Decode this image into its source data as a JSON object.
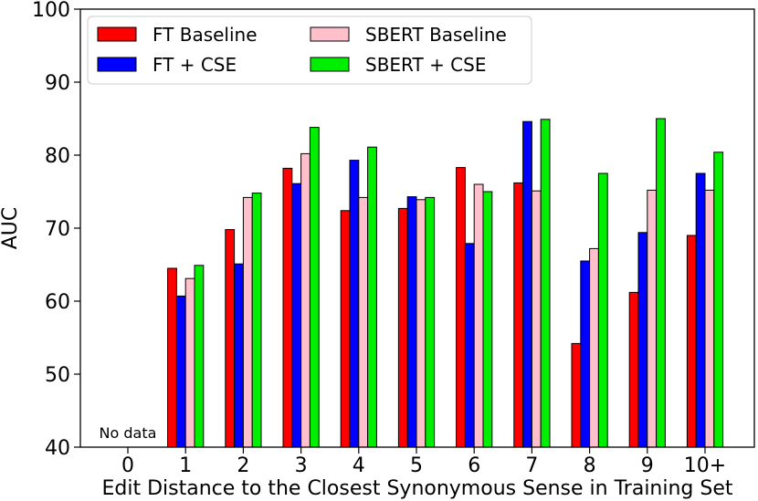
{
  "chart_data": {
    "type": "bar",
    "title": "",
    "xlabel": "Edit Distance to the Closest Synonymous Sense in Training Set",
    "ylabel": "AUC",
    "ylim": [
      40,
      100
    ],
    "yticks": [
      "40",
      "50",
      "60",
      "70",
      "80",
      "90",
      "100"
    ],
    "categories": [
      "0",
      "1",
      "2",
      "3",
      "4",
      "5",
      "6",
      "7",
      "8",
      "9",
      "10+"
    ],
    "series": [
      {
        "name": "FT Baseline",
        "color": "#ff0000",
        "values": [
          null,
          64.5,
          69.8,
          78.2,
          72.4,
          72.7,
          78.3,
          76.2,
          54.2,
          61.2,
          69.0
        ]
      },
      {
        "name": "FT + CSE",
        "color": "#0000ff",
        "values": [
          null,
          60.7,
          65.1,
          76.1,
          79.3,
          74.3,
          67.9,
          84.6,
          65.5,
          69.4,
          77.5
        ]
      },
      {
        "name": "SBERT Baseline",
        "color": "#ffc0cb",
        "values": [
          null,
          63.1,
          74.2,
          80.2,
          74.2,
          73.9,
          76.0,
          75.1,
          67.2,
          75.2,
          75.2
        ]
      },
      {
        "name": "SBERT + CSE",
        "color": "#00ee00",
        "values": [
          null,
          64.9,
          74.8,
          83.8,
          81.1,
          74.2,
          75.0,
          84.9,
          77.5,
          85.0,
          80.4
        ]
      }
    ],
    "annotations": [
      {
        "category": "0",
        "text": "No data"
      }
    ],
    "legend_position": "top-left",
    "grid": false
  }
}
